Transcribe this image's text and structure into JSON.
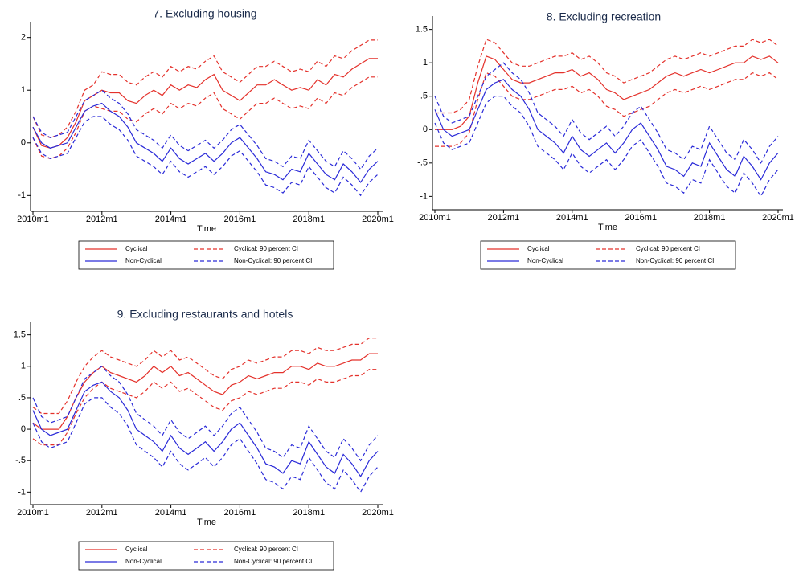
{
  "chart_data": [
    {
      "type": "line",
      "title": "7. Excluding housing",
      "xlabel": "Time",
      "x": [
        "2010m1",
        "2010m4",
        "2010m7",
        "2010m10",
        "2011m1",
        "2011m4",
        "2011m7",
        "2011m10",
        "2012m1",
        "2012m4",
        "2012m7",
        "2012m10",
        "2013m1",
        "2013m4",
        "2013m7",
        "2013m10",
        "2014m1",
        "2014m4",
        "2014m7",
        "2014m10",
        "2015m1",
        "2015m4",
        "2015m7",
        "2015m10",
        "2016m1",
        "2016m4",
        "2016m7",
        "2016m10",
        "2017m1",
        "2017m4",
        "2017m7",
        "2017m10",
        "2018m1",
        "2018m4",
        "2018m7",
        "2018m10",
        "2019m1",
        "2019m4",
        "2019m7",
        "2019m10",
        "2020m1"
      ],
      "xticks": [
        "2010m1",
        "2012m1",
        "2014m1",
        "2016m1",
        "2018m1",
        "2020m1"
      ],
      "ylim": [
        -1.3,
        2.3
      ],
      "yticks": [
        -1,
        0,
        1,
        2
      ],
      "series": [
        {
          "name": "Cyclical",
          "color": "#e4312b",
          "dash": false,
          "values": [
            0.3,
            -0.05,
            -0.1,
            -0.05,
            0.1,
            0.4,
            0.8,
            0.9,
            1.0,
            0.95,
            0.95,
            0.8,
            0.75,
            0.9,
            1.0,
            0.9,
            1.1,
            1.0,
            1.1,
            1.05,
            1.2,
            1.3,
            1.0,
            0.9,
            0.8,
            0.95,
            1.1,
            1.1,
            1.2,
            1.1,
            1.0,
            1.05,
            1.0,
            1.2,
            1.1,
            1.3,
            1.25,
            1.4,
            1.5,
            1.6,
            1.6
          ]
        },
        {
          "name": "Cyclical: 90 percent CI",
          "color": "#e4312b",
          "dash": true,
          "upper": [
            0.5,
            0.15,
            0.1,
            0.15,
            0.3,
            0.6,
            1.0,
            1.1,
            1.35,
            1.3,
            1.3,
            1.15,
            1.1,
            1.25,
            1.35,
            1.25,
            1.45,
            1.35,
            1.45,
            1.4,
            1.55,
            1.65,
            1.35,
            1.25,
            1.15,
            1.3,
            1.45,
            1.45,
            1.55,
            1.45,
            1.35,
            1.4,
            1.35,
            1.55,
            1.45,
            1.65,
            1.6,
            1.75,
            1.85,
            1.95,
            1.95
          ],
          "lower": [
            0.1,
            -0.25,
            -0.3,
            -0.25,
            -0.1,
            0.2,
            0.6,
            0.7,
            0.65,
            0.6,
            0.6,
            0.45,
            0.4,
            0.55,
            0.65,
            0.55,
            0.75,
            0.65,
            0.75,
            0.7,
            0.85,
            0.95,
            0.65,
            0.55,
            0.45,
            0.6,
            0.75,
            0.75,
            0.85,
            0.75,
            0.65,
            0.7,
            0.65,
            0.85,
            0.75,
            0.95,
            0.9,
            1.05,
            1.15,
            1.25,
            1.25
          ]
        },
        {
          "name": "Non-Cyclical",
          "color": "#2a2ad8",
          "dash": false,
          "values": [
            0.3,
            0.0,
            -0.1,
            -0.05,
            0.0,
            0.3,
            0.6,
            0.7,
            0.75,
            0.6,
            0.5,
            0.3,
            0.0,
            -0.1,
            -0.2,
            -0.35,
            -0.1,
            -0.3,
            -0.4,
            -0.3,
            -0.2,
            -0.35,
            -0.2,
            0.0,
            0.1,
            -0.1,
            -0.3,
            -0.55,
            -0.6,
            -0.7,
            -0.5,
            -0.55,
            -0.2,
            -0.4,
            -0.6,
            -0.7,
            -0.4,
            -0.55,
            -0.75,
            -0.5,
            -0.35
          ]
        },
        {
          "name": "Non-Cyclical: 90 percent CI",
          "color": "#2a2ad8",
          "dash": true,
          "upper": [
            0.5,
            0.2,
            0.1,
            0.15,
            0.2,
            0.5,
            0.8,
            0.9,
            1.0,
            0.85,
            0.75,
            0.55,
            0.25,
            0.15,
            0.05,
            -0.1,
            0.15,
            -0.05,
            -0.15,
            -0.05,
            0.05,
            -0.1,
            0.05,
            0.25,
            0.35,
            0.15,
            -0.05,
            -0.3,
            -0.35,
            -0.45,
            -0.25,
            -0.3,
            0.05,
            -0.15,
            -0.35,
            -0.45,
            -0.15,
            -0.3,
            -0.5,
            -0.25,
            -0.1
          ],
          "lower": [
            0.1,
            -0.2,
            -0.3,
            -0.25,
            -0.2,
            0.1,
            0.4,
            0.5,
            0.5,
            0.35,
            0.25,
            0.05,
            -0.25,
            -0.35,
            -0.45,
            -0.6,
            -0.35,
            -0.55,
            -0.65,
            -0.55,
            -0.45,
            -0.6,
            -0.45,
            -0.25,
            -0.15,
            -0.35,
            -0.55,
            -0.8,
            -0.85,
            -0.95,
            -0.75,
            -0.8,
            -0.45,
            -0.65,
            -0.85,
            -0.95,
            -0.65,
            -0.8,
            -1.0,
            -0.75,
            -0.6
          ]
        }
      ]
    },
    {
      "type": "line",
      "title": "8. Excluding recreation",
      "xlabel": "Time",
      "x": [
        "2010m1",
        "2010m4",
        "2010m7",
        "2010m10",
        "2011m1",
        "2011m4",
        "2011m7",
        "2011m10",
        "2012m1",
        "2012m4",
        "2012m7",
        "2012m10",
        "2013m1",
        "2013m4",
        "2013m7",
        "2013m10",
        "2014m1",
        "2014m4",
        "2014m7",
        "2014m10",
        "2015m1",
        "2015m4",
        "2015m7",
        "2015m10",
        "2016m1",
        "2016m4",
        "2016m7",
        "2016m10",
        "2017m1",
        "2017m4",
        "2017m7",
        "2017m10",
        "2018m1",
        "2018m4",
        "2018m7",
        "2018m10",
        "2019m1",
        "2019m4",
        "2019m7",
        "2019m10",
        "2020m1"
      ],
      "xticks": [
        "2010m1",
        "2012m1",
        "2014m1",
        "2016m1",
        "2018m1",
        "2020m1"
      ],
      "ylim": [
        -1.2,
        1.7
      ],
      "yticks": [
        -1,
        {
          "value": -0.5,
          "label": "-.5"
        },
        0,
        {
          "value": 0.5,
          "label": ".5"
        },
        1,
        1.5
      ],
      "series": [
        {
          "name": "Cyclical",
          "color": "#e4312b",
          "dash": false,
          "values": [
            0.0,
            0.0,
            0.0,
            0.05,
            0.2,
            0.7,
            1.1,
            1.05,
            0.9,
            0.75,
            0.7,
            0.7,
            0.75,
            0.8,
            0.85,
            0.85,
            0.9,
            0.8,
            0.85,
            0.75,
            0.6,
            0.55,
            0.45,
            0.5,
            0.55,
            0.6,
            0.7,
            0.8,
            0.85,
            0.8,
            0.85,
            0.9,
            0.85,
            0.9,
            0.95,
            1.0,
            1.0,
            1.1,
            1.05,
            1.1,
            1.0
          ]
        },
        {
          "name": "Cyclical: 90 percent CI",
          "color": "#e4312b",
          "dash": true,
          "upper": [
            0.25,
            0.25,
            0.25,
            0.3,
            0.45,
            0.95,
            1.35,
            1.3,
            1.15,
            1.0,
            0.95,
            0.95,
            1.0,
            1.05,
            1.1,
            1.1,
            1.15,
            1.05,
            1.1,
            1.0,
            0.85,
            0.8,
            0.7,
            0.75,
            0.8,
            0.85,
            0.95,
            1.05,
            1.1,
            1.05,
            1.1,
            1.15,
            1.1,
            1.15,
            1.2,
            1.25,
            1.25,
            1.35,
            1.3,
            1.35,
            1.25
          ],
          "lower": [
            -0.25,
            -0.25,
            -0.25,
            -0.2,
            -0.05,
            0.45,
            0.85,
            0.8,
            0.65,
            0.5,
            0.45,
            0.45,
            0.5,
            0.55,
            0.6,
            0.6,
            0.65,
            0.55,
            0.6,
            0.5,
            0.35,
            0.3,
            0.2,
            0.25,
            0.3,
            0.35,
            0.45,
            0.55,
            0.6,
            0.55,
            0.6,
            0.65,
            0.6,
            0.65,
            0.7,
            0.75,
            0.75,
            0.85,
            0.8,
            0.85,
            0.75
          ]
        },
        {
          "name": "Non-Cyclical",
          "color": "#2a2ad8",
          "dash": false,
          "values": [
            0.3,
            0.0,
            -0.1,
            -0.05,
            0.0,
            0.3,
            0.6,
            0.7,
            0.75,
            0.6,
            0.5,
            0.3,
            0.0,
            -0.1,
            -0.2,
            -0.35,
            -0.1,
            -0.3,
            -0.4,
            -0.3,
            -0.2,
            -0.35,
            -0.2,
            0.0,
            0.1,
            -0.1,
            -0.3,
            -0.55,
            -0.6,
            -0.7,
            -0.5,
            -0.55,
            -0.2,
            -0.4,
            -0.6,
            -0.7,
            -0.4,
            -0.55,
            -0.75,
            -0.5,
            -0.35
          ]
        },
        {
          "name": "Non-Cyclical: 90 percent CI",
          "color": "#2a2ad8",
          "dash": true,
          "upper": [
            0.5,
            0.2,
            0.1,
            0.15,
            0.2,
            0.5,
            0.8,
            0.9,
            1.0,
            0.85,
            0.75,
            0.55,
            0.25,
            0.15,
            0.05,
            -0.1,
            0.15,
            -0.05,
            -0.15,
            -0.05,
            0.05,
            -0.1,
            0.05,
            0.25,
            0.35,
            0.15,
            -0.05,
            -0.3,
            -0.35,
            -0.45,
            -0.25,
            -0.3,
            0.05,
            -0.15,
            -0.35,
            -0.45,
            -0.15,
            -0.3,
            -0.5,
            -0.25,
            -0.1
          ],
          "lower": [
            0.1,
            -0.2,
            -0.3,
            -0.25,
            -0.2,
            0.1,
            0.4,
            0.5,
            0.5,
            0.35,
            0.25,
            0.05,
            -0.25,
            -0.35,
            -0.45,
            -0.6,
            -0.35,
            -0.55,
            -0.65,
            -0.55,
            -0.45,
            -0.6,
            -0.45,
            -0.25,
            -0.15,
            -0.35,
            -0.55,
            -0.8,
            -0.85,
            -0.95,
            -0.75,
            -0.8,
            -0.45,
            -0.65,
            -0.85,
            -0.95,
            -0.65,
            -0.8,
            -1.0,
            -0.75,
            -0.6
          ]
        }
      ]
    },
    {
      "type": "line",
      "title": "9. Excluding restaurants and hotels",
      "xlabel": "Time",
      "x": [
        "2010m1",
        "2010m4",
        "2010m7",
        "2010m10",
        "2011m1",
        "2011m4",
        "2011m7",
        "2011m10",
        "2012m1",
        "2012m4",
        "2012m7",
        "2012m10",
        "2013m1",
        "2013m4",
        "2013m7",
        "2013m10",
        "2014m1",
        "2014m4",
        "2014m7",
        "2014m10",
        "2015m1",
        "2015m4",
        "2015m7",
        "2015m10",
        "2016m1",
        "2016m4",
        "2016m7",
        "2016m10",
        "2017m1",
        "2017m4",
        "2017m7",
        "2017m10",
        "2018m1",
        "2018m4",
        "2018m7",
        "2018m10",
        "2019m1",
        "2019m4",
        "2019m7",
        "2019m10",
        "2020m1"
      ],
      "xticks": [
        "2010m1",
        "2012m1",
        "2014m1",
        "2016m1",
        "2018m1",
        "2020m1"
      ],
      "ylim": [
        -1.2,
        1.7
      ],
      "yticks": [
        -1,
        {
          "value": -0.5,
          "label": "-.5"
        },
        0,
        {
          "value": 0.5,
          "label": ".5"
        },
        1,
        1.5
      ],
      "series": [
        {
          "name": "Cyclical",
          "color": "#e4312b",
          "dash": false,
          "values": [
            0.1,
            0.0,
            0.0,
            0.0,
            0.2,
            0.5,
            0.75,
            0.9,
            1.0,
            0.9,
            0.85,
            0.8,
            0.75,
            0.85,
            1.0,
            0.9,
            1.0,
            0.85,
            0.9,
            0.8,
            0.7,
            0.6,
            0.55,
            0.7,
            0.75,
            0.85,
            0.8,
            0.85,
            0.9,
            0.9,
            1.0,
            1.0,
            0.95,
            1.05,
            1.0,
            1.0,
            1.05,
            1.1,
            1.1,
            1.2,
            1.2
          ]
        },
        {
          "name": "Cyclical: 90 percent CI",
          "color": "#e4312b",
          "dash": true,
          "upper": [
            0.35,
            0.25,
            0.25,
            0.25,
            0.45,
            0.75,
            1.0,
            1.15,
            1.25,
            1.15,
            1.1,
            1.05,
            1.0,
            1.1,
            1.25,
            1.15,
            1.25,
            1.1,
            1.15,
            1.05,
            0.95,
            0.85,
            0.8,
            0.95,
            1.0,
            1.1,
            1.05,
            1.1,
            1.15,
            1.15,
            1.25,
            1.25,
            1.2,
            1.3,
            1.25,
            1.25,
            1.3,
            1.35,
            1.35,
            1.45,
            1.45
          ],
          "lower": [
            -0.15,
            -0.25,
            -0.25,
            -0.25,
            -0.05,
            0.25,
            0.5,
            0.65,
            0.75,
            0.65,
            0.6,
            0.55,
            0.5,
            0.6,
            0.75,
            0.65,
            0.75,
            0.6,
            0.65,
            0.55,
            0.45,
            0.35,
            0.3,
            0.45,
            0.5,
            0.6,
            0.55,
            0.6,
            0.65,
            0.65,
            0.75,
            0.75,
            0.7,
            0.8,
            0.75,
            0.75,
            0.8,
            0.85,
            0.85,
            0.95,
            0.95
          ]
        },
        {
          "name": "Non-Cyclical",
          "color": "#2a2ad8",
          "dash": false,
          "values": [
            0.3,
            0.0,
            -0.1,
            -0.05,
            0.0,
            0.3,
            0.6,
            0.7,
            0.75,
            0.6,
            0.5,
            0.3,
            0.0,
            -0.1,
            -0.2,
            -0.35,
            -0.1,
            -0.3,
            -0.4,
            -0.3,
            -0.2,
            -0.35,
            -0.2,
            0.0,
            0.1,
            -0.1,
            -0.3,
            -0.55,
            -0.6,
            -0.7,
            -0.5,
            -0.55,
            -0.2,
            -0.4,
            -0.6,
            -0.7,
            -0.4,
            -0.55,
            -0.75,
            -0.5,
            -0.35
          ]
        },
        {
          "name": "Non-Cyclical: 90 percent CI",
          "color": "#2a2ad8",
          "dash": true,
          "upper": [
            0.5,
            0.2,
            0.1,
            0.15,
            0.2,
            0.5,
            0.8,
            0.9,
            1.0,
            0.85,
            0.75,
            0.55,
            0.25,
            0.15,
            0.05,
            -0.1,
            0.15,
            -0.05,
            -0.15,
            -0.05,
            0.05,
            -0.1,
            0.05,
            0.25,
            0.35,
            0.15,
            -0.05,
            -0.3,
            -0.35,
            -0.45,
            -0.25,
            -0.3,
            0.05,
            -0.15,
            -0.35,
            -0.45,
            -0.15,
            -0.3,
            -0.5,
            -0.25,
            -0.1
          ],
          "lower": [
            0.1,
            -0.2,
            -0.3,
            -0.25,
            -0.2,
            0.1,
            0.4,
            0.5,
            0.5,
            0.35,
            0.25,
            0.05,
            -0.25,
            -0.35,
            -0.45,
            -0.6,
            -0.35,
            -0.55,
            -0.65,
            -0.55,
            -0.45,
            -0.6,
            -0.45,
            -0.25,
            -0.15,
            -0.35,
            -0.55,
            -0.8,
            -0.85,
            -0.95,
            -0.75,
            -0.8,
            -0.45,
            -0.65,
            -0.85,
            -0.95,
            -0.65,
            -0.8,
            -1.0,
            -0.75,
            -0.6
          ]
        }
      ]
    }
  ]
}
